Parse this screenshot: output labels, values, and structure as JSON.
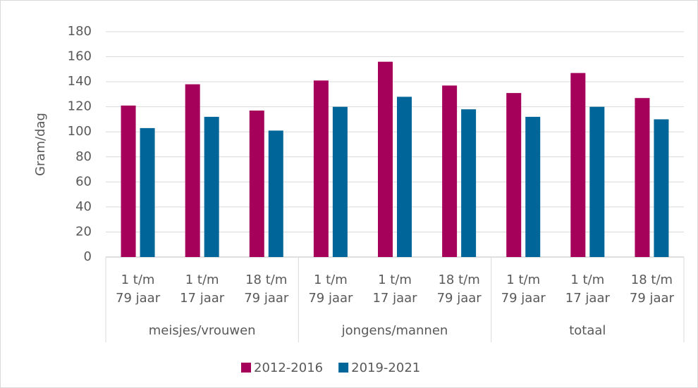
{
  "chart_data": {
    "type": "bar",
    "y_label": "Gram/dag",
    "categories": [
      "1 t/m 79 jaar",
      "1 t/m 17 jaar",
      "18 t/m 79 jaar",
      "1 t/m 79 jaar",
      "1 t/m 17 jaar",
      "18 t/m 79 jaar",
      "1 t/m 79 jaar",
      "1 t/m 17 jaar",
      "18 t/m 79 jaar"
    ],
    "groups": [
      "meisjes/vrouwen",
      "jongens/mannen",
      "totaal"
    ],
    "series": [
      {
        "name": "2012-2016",
        "color": "#a5005a",
        "values": [
          121,
          138,
          117,
          141,
          156,
          137,
          131,
          147,
          127
        ]
      },
      {
        "name": "2019-2021",
        "color": "#006598",
        "values": [
          103,
          112,
          101,
          120,
          128,
          118,
          112,
          120,
          110
        ]
      }
    ],
    "ylim": [
      0,
      180
    ],
    "yticks": [
      0,
      20,
      40,
      60,
      80,
      100,
      120,
      140,
      160,
      180
    ],
    "grid": true,
    "legend": "bottom"
  }
}
